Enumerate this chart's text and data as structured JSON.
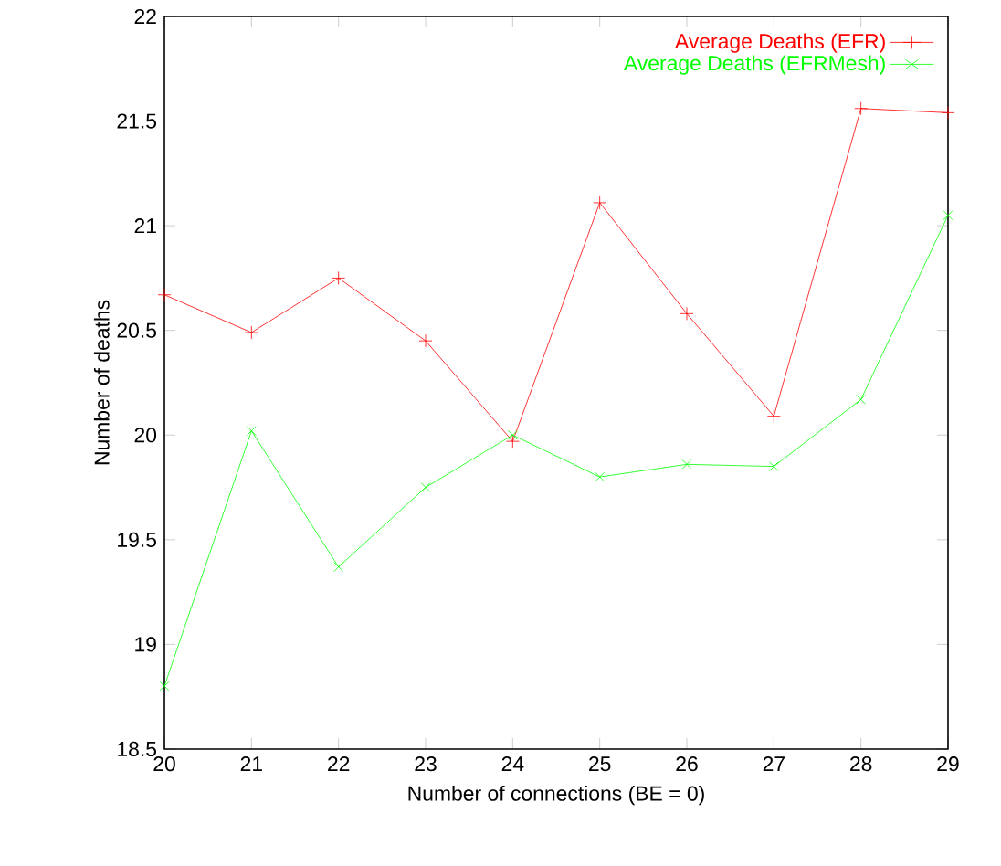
{
  "chart_data": {
    "type": "line",
    "xlabel": "Number of connections (BE = 0)",
    "ylabel": "Number of deaths",
    "x": [
      20,
      21,
      22,
      23,
      24,
      25,
      26,
      27,
      28,
      29
    ],
    "series": [
      {
        "name": "Average Deaths (EFR)",
        "color": "#ff0000",
        "marker": "plus",
        "values": [
          20.67,
          20.49,
          20.75,
          20.45,
          19.97,
          21.11,
          20.58,
          20.09,
          21.56,
          21.54
        ]
      },
      {
        "name": "Average Deaths (EFRMesh)",
        "color": "#00ff00",
        "marker": "cross",
        "values": [
          18.8,
          20.02,
          19.37,
          19.75,
          20.0,
          19.8,
          19.86,
          19.85,
          20.17,
          21.05
        ]
      }
    ],
    "xlim": [
      20,
      29
    ],
    "xticks": [
      20,
      21,
      22,
      23,
      24,
      25,
      26,
      27,
      28,
      29
    ],
    "ylim": [
      18.5,
      22
    ],
    "yticks": [
      18.5,
      19,
      19.5,
      20,
      20.5,
      21,
      21.5,
      22
    ],
    "grid": false,
    "legend": "top right",
    "line_style": "solid"
  }
}
